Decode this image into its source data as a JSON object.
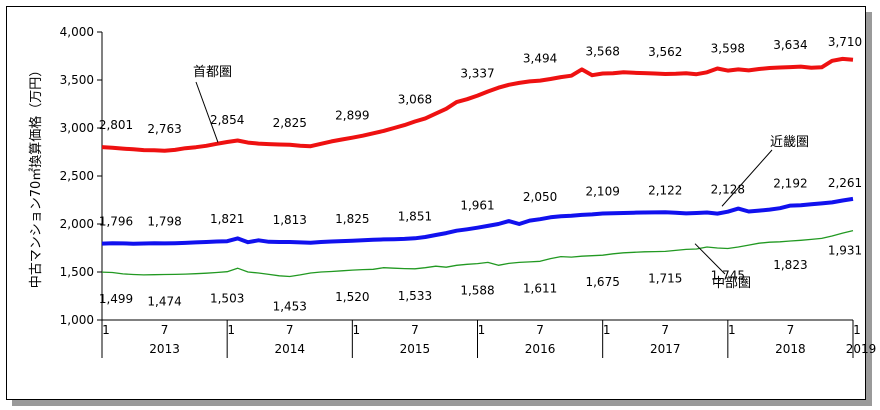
{
  "chart_data": {
    "type": "line",
    "ylabel": "中古マンション70㎡換算価格（万円）",
    "ylim": [
      1000,
      4000
    ],
    "yticks": [
      "1,000",
      "1,500",
      "2,000",
      "2,500",
      "3,000",
      "3,500",
      "4,000"
    ],
    "month_labels": [
      "1",
      "7"
    ],
    "years": [
      "2013",
      "2014",
      "2015",
      "2016",
      "2017",
      "2018",
      "2019"
    ],
    "grid": false,
    "colors": {
      "首都圏": "#ee1111",
      "近畿圏": "#1111ee",
      "中部圏": "#229922"
    },
    "series": [
      {
        "name": "首都圏",
        "labeled_points": [
          {
            "x": "2013-01",
            "y": 2801,
            "label": "2,801"
          },
          {
            "x": "2013-07",
            "y": 2763,
            "label": "2,763"
          },
          {
            "x": "2014-01",
            "y": 2854,
            "label": "2,854"
          },
          {
            "x": "2014-07",
            "y": 2825,
            "label": "2,825"
          },
          {
            "x": "2015-01",
            "y": 2899,
            "label": "2,899"
          },
          {
            "x": "2015-07",
            "y": 3068,
            "label": "3,068"
          },
          {
            "x": "2016-01",
            "y": 3337,
            "label": "3,337"
          },
          {
            "x": "2016-07",
            "y": 3494,
            "label": "3,494"
          },
          {
            "x": "2017-01",
            "y": 3568,
            "label": "3,568"
          },
          {
            "x": "2017-07",
            "y": 3562,
            "label": "3,562"
          },
          {
            "x": "2018-01",
            "y": 3598,
            "label": "3,598"
          },
          {
            "x": "2018-07",
            "y": 3634,
            "label": "3,634"
          },
          {
            "x": "2019-01",
            "y": 3710,
            "label": "3,710"
          }
        ],
        "monthly_values": [
          2801,
          2795,
          2785,
          2778,
          2770,
          2768,
          2763,
          2772,
          2790,
          2800,
          2815,
          2835,
          2854,
          2870,
          2848,
          2838,
          2832,
          2828,
          2825,
          2815,
          2810,
          2835,
          2860,
          2880,
          2899,
          2920,
          2945,
          2970,
          3000,
          3030,
          3068,
          3100,
          3150,
          3200,
          3270,
          3300,
          3337,
          3380,
          3420,
          3450,
          3470,
          3485,
          3494,
          3510,
          3530,
          3545,
          3610,
          3550,
          3568,
          3570,
          3580,
          3575,
          3572,
          3568,
          3562,
          3565,
          3570,
          3560,
          3580,
          3620,
          3598,
          3610,
          3600,
          3615,
          3625,
          3630,
          3634,
          3640,
          3628,
          3632,
          3700,
          3720,
          3710
        ]
      },
      {
        "name": "近畿圏",
        "labeled_points": [
          {
            "x": "2013-01",
            "y": 1796,
            "label": "1,796"
          },
          {
            "x": "2013-07",
            "y": 1798,
            "label": "1,798"
          },
          {
            "x": "2014-01",
            "y": 1821,
            "label": "1,821"
          },
          {
            "x": "2014-07",
            "y": 1813,
            "label": "1,813"
          },
          {
            "x": "2015-01",
            "y": 1825,
            "label": "1,825"
          },
          {
            "x": "2015-07",
            "y": 1851,
            "label": "1,851"
          },
          {
            "x": "2016-01",
            "y": 1961,
            "label": "1,961"
          },
          {
            "x": "2016-07",
            "y": 2050,
            "label": "2,050"
          },
          {
            "x": "2017-01",
            "y": 2109,
            "label": "2,109"
          },
          {
            "x": "2017-07",
            "y": 2122,
            "label": "2,122"
          },
          {
            "x": "2018-01",
            "y": 2128,
            "label": "2,128"
          },
          {
            "x": "2018-07",
            "y": 2192,
            "label": "2,192"
          },
          {
            "x": "2019-01",
            "y": 2261,
            "label": "2,261"
          }
        ],
        "monthly_values": [
          1796,
          1800,
          1798,
          1795,
          1797,
          1799,
          1798,
          1800,
          1803,
          1808,
          1812,
          1818,
          1821,
          1850,
          1810,
          1830,
          1815,
          1812,
          1813,
          1808,
          1805,
          1812,
          1818,
          1822,
          1825,
          1830,
          1835,
          1840,
          1842,
          1845,
          1851,
          1865,
          1885,
          1905,
          1930,
          1945,
          1961,
          1980,
          2000,
          2030,
          2000,
          2035,
          2050,
          2070,
          2080,
          2085,
          2095,
          2100,
          2109,
          2112,
          2115,
          2118,
          2120,
          2121,
          2122,
          2118,
          2110,
          2115,
          2120,
          2108,
          2128,
          2160,
          2130,
          2140,
          2150,
          2165,
          2192,
          2195,
          2205,
          2215,
          2225,
          2245,
          2261
        ]
      },
      {
        "name": "中部圏",
        "labeled_points": [
          {
            "x": "2013-01",
            "y": 1499,
            "label": "1,499"
          },
          {
            "x": "2013-07",
            "y": 1474,
            "label": "1,474"
          },
          {
            "x": "2014-01",
            "y": 1503,
            "label": "1,503"
          },
          {
            "x": "2014-07",
            "y": 1453,
            "label": "1,453"
          },
          {
            "x": "2015-01",
            "y": 1520,
            "label": "1,520"
          },
          {
            "x": "2015-07",
            "y": 1533,
            "label": "1,533"
          },
          {
            "x": "2016-01",
            "y": 1588,
            "label": "1,588"
          },
          {
            "x": "2016-07",
            "y": 1611,
            "label": "1,611"
          },
          {
            "x": "2017-01",
            "y": 1675,
            "label": "1,675"
          },
          {
            "x": "2017-07",
            "y": 1715,
            "label": "1,715"
          },
          {
            "x": "2018-01",
            "y": 1745,
            "label": "1,745"
          },
          {
            "x": "2018-07",
            "y": 1823,
            "label": "1,823"
          },
          {
            "x": "2019-01",
            "y": 1931,
            "label": "1,931"
          }
        ],
        "monthly_values": [
          1499,
          1495,
          1480,
          1474,
          1470,
          1472,
          1474,
          1475,
          1478,
          1482,
          1488,
          1495,
          1503,
          1540,
          1500,
          1490,
          1475,
          1460,
          1453,
          1470,
          1490,
          1500,
          1505,
          1512,
          1520,
          1525,
          1528,
          1545,
          1540,
          1535,
          1533,
          1545,
          1560,
          1550,
          1570,
          1580,
          1588,
          1600,
          1570,
          1590,
          1600,
          1605,
          1611,
          1640,
          1660,
          1655,
          1665,
          1670,
          1675,
          1690,
          1700,
          1705,
          1710,
          1712,
          1715,
          1725,
          1735,
          1740,
          1760,
          1750,
          1745,
          1760,
          1780,
          1800,
          1810,
          1815,
          1823,
          1830,
          1840,
          1850,
          1875,
          1905,
          1931
        ]
      }
    ]
  }
}
